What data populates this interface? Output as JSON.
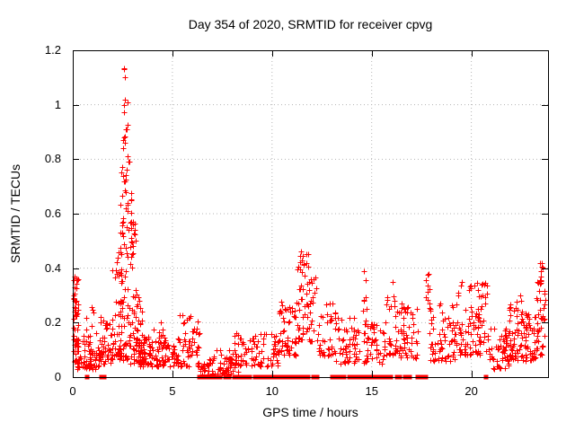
{
  "chart_data": {
    "type": "scatter",
    "title": "Day 354 of 2020, SRMTID for receiver cpvg",
    "xlabel": "GPS time / hours",
    "ylabel": "SRMTID / TECUs",
    "xlim": [
      0,
      23.85
    ],
    "ylim": [
      0,
      1.2
    ],
    "xticks": [
      0,
      5,
      10,
      15,
      20
    ],
    "xtick_labels": [
      "0",
      "5",
      "10",
      "15",
      "20"
    ],
    "yticks": [
      0,
      0.2,
      0.4,
      0.6,
      0.8,
      1.0,
      1.2
    ],
    "ytick_labels": [
      "0",
      "0.2",
      "0.4",
      "0.6",
      "0.8",
      "1",
      "1.2"
    ],
    "grid": true,
    "grid_style": "dotted",
    "legend": false,
    "marker": "plus",
    "marker_size": 7,
    "marker_color": "#ff0000",
    "zero_marker": "filled-square",
    "zero_marker_size": 5,
    "grid_color": "#b5b5b5",
    "axis_color": "#000000",
    "background_color": "#ffffff",
    "seed": 354,
    "clusters_format": "[x_start_hours, x_end_hours, n_points, y_min_TECU, y_max_TECU, low_bias_exponent]",
    "clusters": [
      [
        0.02,
        0.28,
        55,
        0.04,
        0.37,
        1.1
      ],
      [
        0.2,
        1.35,
        70,
        0.03,
        0.14,
        1.6
      ],
      [
        0.35,
        1.2,
        10,
        0.14,
        0.26,
        1.2
      ],
      [
        1.35,
        2.0,
        45,
        0.05,
        0.24,
        1.8
      ],
      [
        1.95,
        2.45,
        40,
        0.08,
        0.5,
        1.8
      ],
      [
        2.35,
        3.2,
        110,
        0.05,
        0.58,
        1.5
      ],
      [
        2.4,
        2.95,
        22,
        0.55,
        0.8,
        1.0
      ],
      [
        2.5,
        2.8,
        10,
        0.8,
        1.14,
        0.9
      ],
      [
        3.2,
        3.6,
        40,
        0.05,
        0.3,
        1.8
      ],
      [
        3.3,
        5.3,
        110,
        0.04,
        0.15,
        1.5
      ],
      [
        4.0,
        4.6,
        10,
        0.12,
        0.21,
        1.2
      ],
      [
        5.3,
        6.35,
        55,
        0.04,
        0.23,
        1.7
      ],
      [
        6.35,
        8.1,
        55,
        0.01,
        0.07,
        1.3
      ],
      [
        7.0,
        8.3,
        20,
        0.02,
        0.1,
        1.4
      ],
      [
        8.1,
        10.4,
        90,
        0.04,
        0.16,
        1.4
      ],
      [
        10.3,
        11.25,
        55,
        0.08,
        0.28,
        1.5
      ],
      [
        11.25,
        12.3,
        60,
        0.13,
        0.42,
        1.3
      ],
      [
        11.4,
        12.0,
        8,
        0.38,
        0.46,
        1.0
      ],
      [
        12.3,
        13.2,
        40,
        0.08,
        0.28,
        1.6
      ],
      [
        13.2,
        14.4,
        55,
        0.05,
        0.22,
        1.7
      ],
      [
        14.5,
        14.75,
        8,
        0.18,
        0.39,
        1.0
      ],
      [
        14.6,
        15.6,
        45,
        0.05,
        0.2,
        1.6
      ],
      [
        15.6,
        16.4,
        40,
        0.08,
        0.3,
        1.5
      ],
      [
        16.4,
        17.35,
        50,
        0.07,
        0.3,
        1.5
      ],
      [
        17.7,
        17.95,
        7,
        0.25,
        0.38,
        1.0
      ],
      [
        17.9,
        19.2,
        70,
        0.06,
        0.28,
        1.6
      ],
      [
        19.2,
        20.8,
        100,
        0.08,
        0.35,
        1.5
      ],
      [
        20.8,
        21.9,
        60,
        0.03,
        0.18,
        1.5
      ],
      [
        21.9,
        22.6,
        55,
        0.06,
        0.3,
        1.4
      ],
      [
        22.6,
        23.25,
        45,
        0.06,
        0.24,
        1.5
      ],
      [
        23.25,
        23.75,
        40,
        0.08,
        0.38,
        1.2
      ],
      [
        23.4,
        23.6,
        4,
        0.36,
        0.43,
        1.0
      ]
    ],
    "peak_points": [
      [
        2.58,
        1.135
      ],
      [
        2.62,
        1.1
      ],
      [
        2.6,
        1.02
      ],
      [
        2.56,
        1.0
      ],
      [
        2.66,
        0.91
      ],
      [
        2.6,
        0.86
      ],
      [
        2.7,
        0.76
      ],
      [
        2.55,
        0.72
      ],
      [
        2.62,
        0.72
      ],
      [
        0.08,
        0.37
      ],
      [
        0.1,
        0.33
      ],
      [
        11.45,
        0.46
      ],
      [
        11.55,
        0.445
      ],
      [
        11.5,
        0.43
      ],
      [
        11.7,
        0.42
      ],
      [
        14.6,
        0.39
      ],
      [
        16.05,
        0.35
      ],
      [
        17.8,
        0.375
      ],
      [
        17.82,
        0.335
      ],
      [
        19.5,
        0.35
      ],
      [
        20.5,
        0.34
      ],
      [
        23.45,
        0.42
      ],
      [
        23.5,
        0.37
      ],
      [
        23.48,
        0.355
      ]
    ],
    "zero_runs_format": "[x_start_hours, x_end_hours] of filled squares at y=0",
    "zero_runs": [
      [
        0.7,
        0.78
      ],
      [
        1.44,
        1.5
      ],
      [
        1.6,
        1.72
      ],
      [
        6.35,
        7.55
      ],
      [
        7.65,
        8.6
      ],
      [
        8.7,
        9.6
      ],
      [
        9.7,
        10.55
      ],
      [
        10.65,
        11.3
      ],
      [
        11.42,
        12.38
      ],
      [
        13.0,
        13.9
      ],
      [
        14.0,
        15.05
      ],
      [
        15.15,
        16.15
      ],
      [
        16.25,
        16.95
      ],
      [
        17.3,
        17.9
      ],
      [
        20.72,
        20.84
      ]
    ]
  }
}
